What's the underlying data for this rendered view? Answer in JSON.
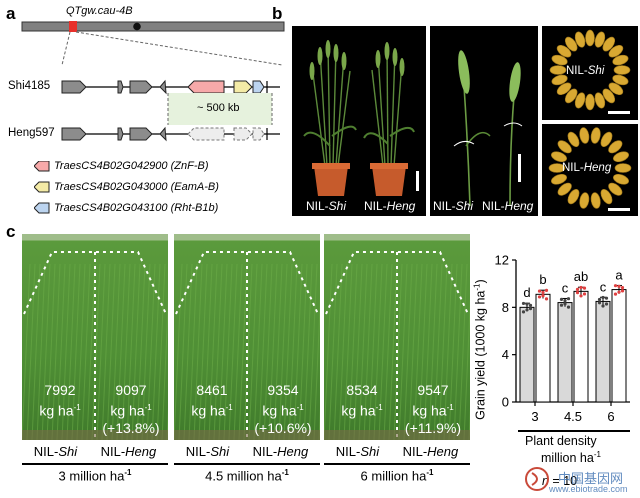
{
  "panels": {
    "a": "a",
    "b": "b",
    "c": "c"
  },
  "panel_a": {
    "locus": "QTgw.cau-4B",
    "line1": "Shi4185",
    "line2": "Heng597",
    "deletion": "~ 500 kb",
    "legend": [
      {
        "gene": "TraesCS4B02G042900",
        "protein": "(ZnF-B)",
        "color": "#f7a9a9"
      },
      {
        "gene": "TraesCS4B02G043000",
        "protein": "(EamA-B)",
        "color": "#f4eba6"
      },
      {
        "gene": "TraesCS4B02G043100",
        "protein": "(Rht-B1b)",
        "color": "#bcd4ef"
      }
    ]
  },
  "panel_b": {
    "plant_left": "NIL-",
    "plant_left_it": "Shi",
    "plant_right": "NIL-",
    "plant_right_it": "Heng",
    "spike_left": "NIL-",
    "spike_left_it": "Shi",
    "spike_right": "NIL-",
    "spike_right_it": "Heng",
    "grain_top": "NIL-",
    "grain_top_it": "Shi",
    "grain_bottom": "NIL-",
    "grain_bottom_it": "Heng"
  },
  "panel_c": {
    "fields": [
      {
        "shi_value": "7992",
        "shi_unit": "kg ha",
        "heng_value": "9097",
        "heng_unit": "kg ha",
        "heng_pct": "(+13.8%)",
        "density": "3 million ha"
      },
      {
        "shi_value": "8461",
        "shi_unit": "kg ha",
        "heng_value": "9354",
        "heng_unit": "kg ha",
        "heng_pct": "(+10.6%)",
        "density": "4.5 million ha"
      },
      {
        "shi_value": "8534",
        "shi_unit": "kg ha",
        "heng_value": "9547",
        "heng_unit": "kg ha",
        "heng_pct": "(+11.9%)",
        "density": "6 million ha"
      }
    ],
    "sup": "-1",
    "name_prefix": "NIL-",
    "name_shi": "Shi",
    "name_heng": "Heng"
  },
  "chart_data": {
    "type": "bar",
    "categories": [
      "3",
      "4.5",
      "6"
    ],
    "series": [
      {
        "values": [
          8.0,
          8.4,
          8.5
        ],
        "color": "#d9d9d9",
        "letters": [
          "d",
          "c",
          "c"
        ]
      },
      {
        "values": [
          9.1,
          9.35,
          9.5
        ],
        "color": "#ffffff",
        "letters": [
          "b",
          "ab",
          "a"
        ]
      }
    ],
    "ylim": [
      0,
      12
    ],
    "yticks": [
      0,
      4,
      8,
      12
    ],
    "ylabel": "Grain yield (1000 kg ha",
    "ylabel_sup": "-1",
    "ylabel_end": ")",
    "xlabel": "Plant density",
    "xlabel2": "million ha",
    "xlabel2_sup": "-1",
    "note_n": "n",
    "note_rest": " = 10"
  },
  "watermark": {
    "cn": "中国基因网",
    "url": "www.ebiotrade.com"
  }
}
